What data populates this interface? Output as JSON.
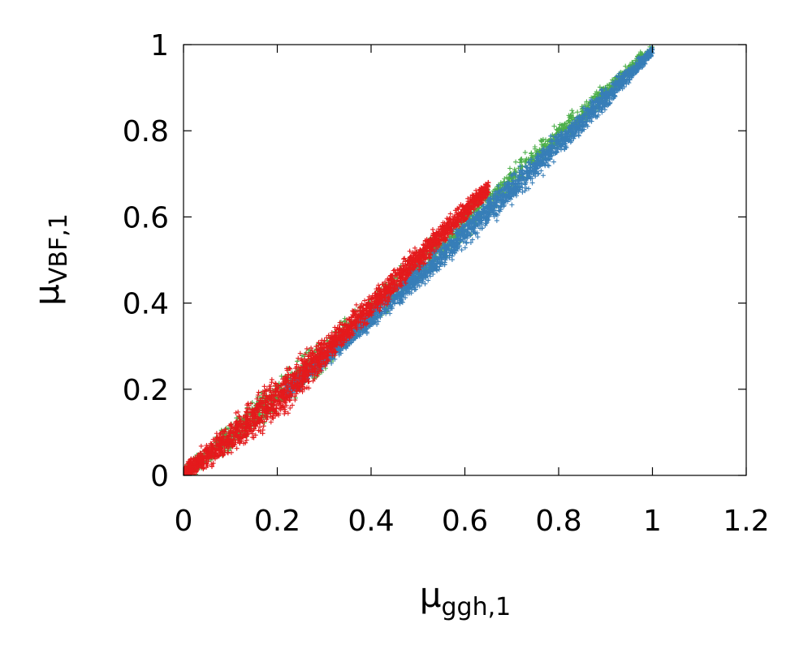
{
  "chart_data": {
    "type": "scatter",
    "title": "",
    "xlabel": {
      "main": "μ",
      "sub": "ggh,1"
    },
    "ylabel": {
      "main": "μ",
      "sub": "VBF,1"
    },
    "xlim": [
      0,
      1.2
    ],
    "ylim": [
      0,
      1
    ],
    "xticks": [
      "0",
      "0.2",
      "0.4",
      "0.6",
      "0.8",
      "1",
      "1.2"
    ],
    "yticks": [
      "0",
      "0.2",
      "0.4",
      "0.6",
      "0.8",
      "1"
    ],
    "xtick_values": [
      0,
      0.2,
      0.4,
      0.6,
      0.8,
      1,
      1.2
    ],
    "ytick_values": [
      0,
      0.2,
      0.4,
      0.6,
      0.8,
      1
    ],
    "grid": false,
    "legend": "none",
    "marker": "plus",
    "series": [
      {
        "color": "#4daf4a",
        "extent": "x from 0 to 1.0 along diagonal band",
        "points": [
          [
            0.0,
            0.0
          ],
          [
            0.05,
            0.04
          ],
          [
            0.1,
            0.07
          ],
          [
            0.15,
            0.12
          ],
          [
            0.2,
            0.18
          ],
          [
            0.25,
            0.22
          ],
          [
            0.3,
            0.27
          ],
          [
            0.35,
            0.33
          ],
          [
            0.4,
            0.37
          ],
          [
            0.45,
            0.43
          ],
          [
            0.5,
            0.48
          ],
          [
            0.55,
            0.53
          ],
          [
            0.6,
            0.58
          ],
          [
            0.65,
            0.64
          ],
          [
            0.7,
            0.69
          ],
          [
            0.75,
            0.74
          ],
          [
            0.8,
            0.79
          ],
          [
            0.85,
            0.85
          ],
          [
            0.9,
            0.9
          ],
          [
            0.95,
            0.95
          ],
          [
            1.0,
            1.0
          ]
        ],
        "band": [
          [
            0.0,
            -0.03,
            0.03
          ],
          [
            0.2,
            0.13,
            0.24
          ],
          [
            0.4,
            0.33,
            0.43
          ],
          [
            0.6,
            0.54,
            0.63
          ],
          [
            0.8,
            0.75,
            0.83
          ],
          [
            1.0,
            0.97,
            1.01
          ]
        ]
      },
      {
        "color": "#377eb8",
        "points": [
          [
            0.25,
            0.2
          ],
          [
            0.3,
            0.27
          ],
          [
            0.35,
            0.3
          ],
          [
            0.4,
            0.35
          ],
          [
            0.45,
            0.4
          ],
          [
            0.5,
            0.45
          ],
          [
            0.55,
            0.5
          ],
          [
            0.6,
            0.55
          ],
          [
            0.65,
            0.61
          ],
          [
            0.7,
            0.66
          ],
          [
            0.75,
            0.71
          ],
          [
            0.8,
            0.77
          ],
          [
            0.85,
            0.82
          ],
          [
            0.9,
            0.88
          ],
          [
            0.95,
            0.94
          ],
          [
            1.0,
            1.0
          ]
        ],
        "band": [
          [
            0.22,
            0.17,
            0.22
          ],
          [
            0.3,
            0.24,
            0.3
          ],
          [
            0.5,
            0.42,
            0.5
          ],
          [
            0.7,
            0.62,
            0.71
          ],
          [
            0.9,
            0.84,
            0.91
          ],
          [
            1.0,
            0.97,
            1.0
          ]
        ]
      },
      {
        "color": "#e41a1c",
        "points": [
          [
            0.0,
            0.0
          ],
          [
            0.05,
            0.05
          ],
          [
            0.1,
            0.1
          ],
          [
            0.15,
            0.15
          ],
          [
            0.2,
            0.2
          ],
          [
            0.25,
            0.25
          ],
          [
            0.3,
            0.29
          ],
          [
            0.35,
            0.34
          ],
          [
            0.4,
            0.4
          ],
          [
            0.45,
            0.45
          ],
          [
            0.5,
            0.5
          ],
          [
            0.55,
            0.55
          ],
          [
            0.6,
            0.6
          ],
          [
            0.65,
            0.68
          ]
        ],
        "band": [
          [
            0.0,
            -0.02,
            0.03
          ],
          [
            0.1,
            0.03,
            0.14
          ],
          [
            0.2,
            0.11,
            0.25
          ],
          [
            0.3,
            0.24,
            0.33
          ],
          [
            0.45,
            0.41,
            0.49
          ],
          [
            0.6,
            0.58,
            0.65
          ],
          [
            0.65,
            0.64,
            0.69
          ]
        ]
      }
    ]
  }
}
